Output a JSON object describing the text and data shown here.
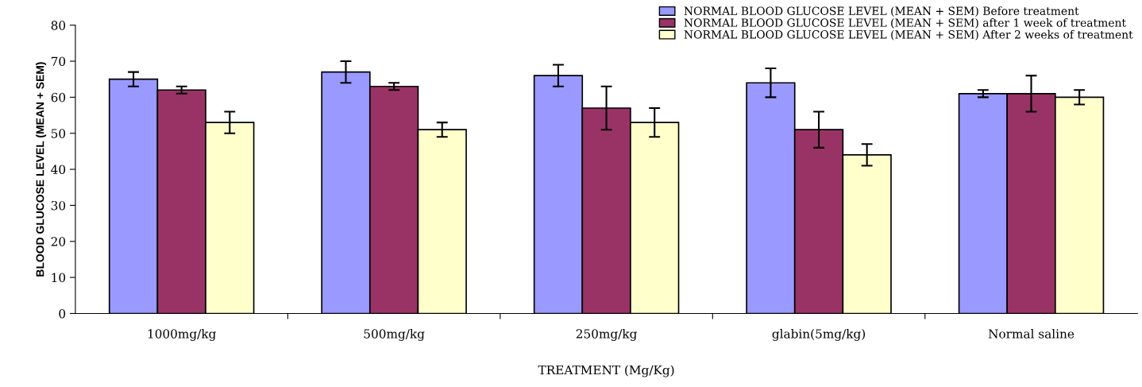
{
  "chart_data": {
    "type": "bar",
    "xlabel": "TREATMENT (Mg/Kg)",
    "ylabel": "BLOOD GLUCOSE LEVEL (MEAN + SEM)",
    "categories": [
      "1000mg/kg",
      "500mg/kg",
      "250mg/kg",
      "glabin(5mg/kg)",
      "Normal saline"
    ],
    "series": [
      {
        "name": "NORMAL BLOOD GLUCOSE LEVEL (MEAN + SEM) Before treatment",
        "color": "#9999ff",
        "values": [
          65,
          67,
          66,
          64,
          61
        ],
        "errors": [
          2,
          3,
          3,
          4,
          1
        ]
      },
      {
        "name": "NORMAL BLOOD GLUCOSE LEVEL (MEAN + SEM) after 1 week of treatment",
        "color": "#993366",
        "values": [
          62,
          63,
          57,
          51,
          61
        ],
        "errors": [
          1,
          1,
          6,
          5,
          5
        ]
      },
      {
        "name": "NORMAL BLOOD GLUCOSE LEVEL (MEAN + SEM) After 2 weeks of treatment",
        "color": "#ffffcc",
        "values": [
          53,
          51,
          53,
          44,
          60
        ],
        "errors": [
          3,
          2,
          4,
          3,
          2
        ]
      }
    ],
    "ylim": [
      0,
      80
    ],
    "yticks": [
      0,
      10,
      20,
      30,
      40,
      50,
      60,
      70,
      80
    ],
    "grid": false,
    "legend": "top right"
  }
}
